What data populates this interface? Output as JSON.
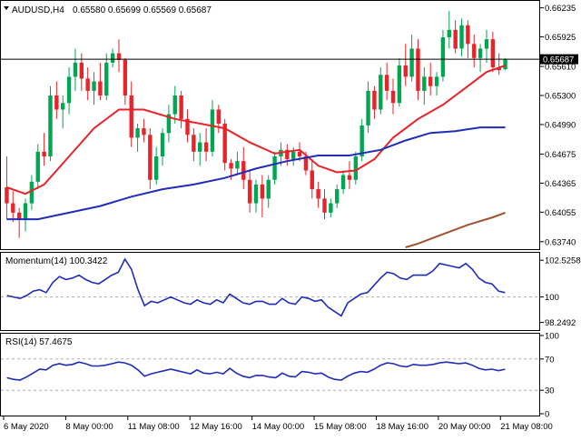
{
  "header": {
    "symbol_tf": "AUDUSD,H4",
    "ohlc": "0.65580 0.65699 0.65569 0.65687",
    "menu_icon": "triangle-down-icon"
  },
  "price_label": "0.65687",
  "panes": {
    "momentum_title": "Momentum(14) 100.3422",
    "rsi_title": "RSI(14) 57.4675"
  },
  "colors": {
    "bull": "#00a651",
    "bear": "#e8232a",
    "ema_fast": "#e8232a",
    "sma_mid": "#1f2db8",
    "sma_slow": "#a0522d",
    "osc": "#1f2db8"
  },
  "chart_data": [
    {
      "type": "candlestick",
      "name": "AUDUSD,H4",
      "y_ticks": [
        "0.66235",
        "0.65925",
        "0.65610",
        "0.65300",
        "0.64990",
        "0.64675",
        "0.64365",
        "0.64055",
        "0.63740"
      ],
      "ylim": [
        0.6368,
        0.6628
      ],
      "current_price": 0.65687,
      "x_labels": [
        "6 May 2020",
        "8 May 00:00",
        "11 May 08:00",
        "12 May 16:00",
        "14 May 00:00",
        "15 May 08:00",
        "18 May 16:00",
        "20 May 00:00",
        "21 May 08:00"
      ],
      "candles": [
        {
          "o": 0.6432,
          "h": 0.6465,
          "l": 0.6398,
          "c": 0.6415
        },
        {
          "o": 0.6415,
          "h": 0.6428,
          "l": 0.6395,
          "c": 0.6405
        },
        {
          "o": 0.6405,
          "h": 0.641,
          "l": 0.6378,
          "c": 0.6398
        },
        {
          "o": 0.6398,
          "h": 0.642,
          "l": 0.6385,
          "c": 0.6415
        },
        {
          "o": 0.6415,
          "h": 0.6445,
          "l": 0.6408,
          "c": 0.6438
        },
        {
          "o": 0.6438,
          "h": 0.6478,
          "l": 0.643,
          "c": 0.647
        },
        {
          "o": 0.647,
          "h": 0.649,
          "l": 0.6455,
          "c": 0.6465
        },
        {
          "o": 0.6465,
          "h": 0.654,
          "l": 0.646,
          "c": 0.653
        },
        {
          "o": 0.653,
          "h": 0.6545,
          "l": 0.6505,
          "c": 0.6515
        },
        {
          "o": 0.6515,
          "h": 0.653,
          "l": 0.6495,
          "c": 0.6522
        },
        {
          "o": 0.6522,
          "h": 0.656,
          "l": 0.651,
          "c": 0.655
        },
        {
          "o": 0.655,
          "h": 0.658,
          "l": 0.6535,
          "c": 0.6565
        },
        {
          "o": 0.6565,
          "h": 0.6575,
          "l": 0.6535,
          "c": 0.6548
        },
        {
          "o": 0.6548,
          "h": 0.656,
          "l": 0.6525,
          "c": 0.6535
        },
        {
          "o": 0.6535,
          "h": 0.6555,
          "l": 0.652,
          "c": 0.6545
        },
        {
          "o": 0.6545,
          "h": 0.6565,
          "l": 0.6525,
          "c": 0.653
        },
        {
          "o": 0.653,
          "h": 0.6575,
          "l": 0.6525,
          "c": 0.6565
        },
        {
          "o": 0.6565,
          "h": 0.658,
          "l": 0.656,
          "c": 0.6575
        },
        {
          "o": 0.6575,
          "h": 0.659,
          "l": 0.6555,
          "c": 0.6568
        },
        {
          "o": 0.6568,
          "h": 0.657,
          "l": 0.652,
          "c": 0.653
        },
        {
          "o": 0.653,
          "h": 0.6545,
          "l": 0.6475,
          "c": 0.6485
        },
        {
          "o": 0.6485,
          "h": 0.65,
          "l": 0.647,
          "c": 0.6495
        },
        {
          "o": 0.6495,
          "h": 0.6505,
          "l": 0.648,
          "c": 0.6488
        },
        {
          "o": 0.6488,
          "h": 0.6495,
          "l": 0.643,
          "c": 0.644
        },
        {
          "o": 0.644,
          "h": 0.6475,
          "l": 0.6435,
          "c": 0.6465
        },
        {
          "o": 0.6465,
          "h": 0.6495,
          "l": 0.6455,
          "c": 0.649
        },
        {
          "o": 0.649,
          "h": 0.652,
          "l": 0.648,
          "c": 0.651
        },
        {
          "o": 0.651,
          "h": 0.654,
          "l": 0.65,
          "c": 0.653
        },
        {
          "o": 0.653,
          "h": 0.6535,
          "l": 0.6495,
          "c": 0.6505
        },
        {
          "o": 0.6505,
          "h": 0.6515,
          "l": 0.648,
          "c": 0.6488
        },
        {
          "o": 0.6488,
          "h": 0.6495,
          "l": 0.646,
          "c": 0.647
        },
        {
          "o": 0.647,
          "h": 0.649,
          "l": 0.6455,
          "c": 0.648
        },
        {
          "o": 0.648,
          "h": 0.6495,
          "l": 0.646,
          "c": 0.647
        },
        {
          "o": 0.647,
          "h": 0.6525,
          "l": 0.6465,
          "c": 0.6515
        },
        {
          "o": 0.6515,
          "h": 0.652,
          "l": 0.649,
          "c": 0.65
        },
        {
          "o": 0.65,
          "h": 0.6505,
          "l": 0.645,
          "c": 0.6458
        },
        {
          "o": 0.6458,
          "h": 0.6462,
          "l": 0.644,
          "c": 0.6452
        },
        {
          "o": 0.6452,
          "h": 0.647,
          "l": 0.6445,
          "c": 0.646
        },
        {
          "o": 0.646,
          "h": 0.6475,
          "l": 0.643,
          "c": 0.644
        },
        {
          "o": 0.644,
          "h": 0.645,
          "l": 0.6405,
          "c": 0.6415
        },
        {
          "o": 0.6415,
          "h": 0.644,
          "l": 0.6405,
          "c": 0.6435
        },
        {
          "o": 0.6435,
          "h": 0.6445,
          "l": 0.64,
          "c": 0.642
        },
        {
          "o": 0.642,
          "h": 0.6445,
          "l": 0.641,
          "c": 0.644
        },
        {
          "o": 0.644,
          "h": 0.647,
          "l": 0.6435,
          "c": 0.6465
        },
        {
          "o": 0.6465,
          "h": 0.648,
          "l": 0.6455,
          "c": 0.6472
        },
        {
          "o": 0.6472,
          "h": 0.6478,
          "l": 0.6455,
          "c": 0.6462
        },
        {
          "o": 0.6462,
          "h": 0.6475,
          "l": 0.6455,
          "c": 0.647
        },
        {
          "o": 0.647,
          "h": 0.648,
          "l": 0.646,
          "c": 0.6465
        },
        {
          "o": 0.6465,
          "h": 0.647,
          "l": 0.6445,
          "c": 0.645
        },
        {
          "o": 0.645,
          "h": 0.6462,
          "l": 0.642,
          "c": 0.643
        },
        {
          "o": 0.643,
          "h": 0.6438,
          "l": 0.641,
          "c": 0.642
        },
        {
          "o": 0.642,
          "h": 0.643,
          "l": 0.6398,
          "c": 0.6405
        },
        {
          "o": 0.6405,
          "h": 0.642,
          "l": 0.64,
          "c": 0.6415
        },
        {
          "o": 0.6415,
          "h": 0.6435,
          "l": 0.641,
          "c": 0.643
        },
        {
          "o": 0.643,
          "h": 0.645,
          "l": 0.6425,
          "c": 0.6445
        },
        {
          "o": 0.6445,
          "h": 0.646,
          "l": 0.643,
          "c": 0.644
        },
        {
          "o": 0.644,
          "h": 0.647,
          "l": 0.6435,
          "c": 0.6465
        },
        {
          "o": 0.6465,
          "h": 0.6505,
          "l": 0.646,
          "c": 0.6498
        },
        {
          "o": 0.6498,
          "h": 0.6545,
          "l": 0.649,
          "c": 0.6535
        },
        {
          "o": 0.6535,
          "h": 0.654,
          "l": 0.6505,
          "c": 0.6515
        },
        {
          "o": 0.6515,
          "h": 0.656,
          "l": 0.651,
          "c": 0.6552
        },
        {
          "o": 0.6552,
          "h": 0.6565,
          "l": 0.6525,
          "c": 0.6535
        },
        {
          "o": 0.6535,
          "h": 0.6548,
          "l": 0.651,
          "c": 0.6522
        },
        {
          "o": 0.6522,
          "h": 0.657,
          "l": 0.6518,
          "c": 0.6562
        },
        {
          "o": 0.6562,
          "h": 0.6585,
          "l": 0.654,
          "c": 0.655
        },
        {
          "o": 0.655,
          "h": 0.6595,
          "l": 0.6545,
          "c": 0.658
        },
        {
          "o": 0.658,
          "h": 0.659,
          "l": 0.6525,
          "c": 0.6535
        },
        {
          "o": 0.6535,
          "h": 0.656,
          "l": 0.652,
          "c": 0.655
        },
        {
          "o": 0.655,
          "h": 0.6565,
          "l": 0.653,
          "c": 0.654
        },
        {
          "o": 0.654,
          "h": 0.6555,
          "l": 0.653,
          "c": 0.655
        },
        {
          "o": 0.655,
          "h": 0.66,
          "l": 0.6545,
          "c": 0.6592
        },
        {
          "o": 0.6592,
          "h": 0.662,
          "l": 0.658,
          "c": 0.66
        },
        {
          "o": 0.66,
          "h": 0.661,
          "l": 0.6575,
          "c": 0.658
        },
        {
          "o": 0.658,
          "h": 0.6612,
          "l": 0.6572,
          "c": 0.6605
        },
        {
          "o": 0.6605,
          "h": 0.661,
          "l": 0.657,
          "c": 0.6585
        },
        {
          "o": 0.6585,
          "h": 0.6595,
          "l": 0.656,
          "c": 0.657
        },
        {
          "o": 0.657,
          "h": 0.6585,
          "l": 0.6555,
          "c": 0.658
        },
        {
          "o": 0.658,
          "h": 0.66,
          "l": 0.6565,
          "c": 0.659
        },
        {
          "o": 0.659,
          "h": 0.6598,
          "l": 0.6555,
          "c": 0.656
        },
        {
          "o": 0.656,
          "h": 0.6575,
          "l": 0.6552,
          "c": 0.6557
        },
        {
          "o": 0.6558,
          "h": 0.657,
          "l": 0.6557,
          "c": 0.65687
        }
      ],
      "indicators": [
        {
          "kind": "ema_fast",
          "points": [
            [
              0,
              0.6432
            ],
            [
              3,
              0.6425
            ],
            [
              6,
              0.6435
            ],
            [
              10,
              0.6465
            ],
            [
              14,
              0.6495
            ],
            [
              18,
              0.6515
            ],
            [
              22,
              0.6515
            ],
            [
              27,
              0.6505
            ],
            [
              31,
              0.65
            ],
            [
              35,
              0.6495
            ],
            [
              39,
              0.648
            ],
            [
              43,
              0.6468
            ],
            [
              47,
              0.6472
            ],
            [
              50,
              0.6455
            ],
            [
              53,
              0.6448
            ],
            [
              56,
              0.645
            ],
            [
              59,
              0.6462
            ],
            [
              62,
              0.6485
            ],
            [
              66,
              0.6505
            ],
            [
              70,
              0.652
            ],
            [
              74,
              0.654
            ],
            [
              77,
              0.6555
            ],
            [
              80,
              0.6562
            ]
          ]
        },
        {
          "kind": "sma_mid",
          "points": [
            [
              0,
              0.6398
            ],
            [
              5,
              0.6398
            ],
            [
              10,
              0.6405
            ],
            [
              15,
              0.6412
            ],
            [
              20,
              0.6422
            ],
            [
              25,
              0.643
            ],
            [
              30,
              0.6435
            ],
            [
              35,
              0.6442
            ],
            [
              40,
              0.6452
            ],
            [
              45,
              0.646
            ],
            [
              50,
              0.6466
            ],
            [
              55,
              0.6466
            ],
            [
              60,
              0.6472
            ],
            [
              64,
              0.6482
            ],
            [
              68,
              0.649
            ],
            [
              72,
              0.6492
            ],
            [
              76,
              0.6496
            ],
            [
              80,
              0.6496
            ]
          ]
        },
        {
          "kind": "sma_slow",
          "points": [
            [
              64,
              0.6368
            ],
            [
              66,
              0.6372
            ],
            [
              70,
              0.6382
            ],
            [
              74,
              0.6392
            ],
            [
              78,
              0.64
            ],
            [
              80,
              0.6405
            ]
          ]
        }
      ]
    },
    {
      "type": "line",
      "name": "Momentum(14)",
      "y_ticks": [
        "102.5258",
        "100",
        "98.2492"
      ],
      "ylim": [
        97.85,
        102.85
      ],
      "reference_line": 100,
      "values": [
        100.1,
        100.0,
        99.9,
        100.1,
        100.4,
        100.5,
        100.3,
        101.0,
        101.4,
        101.2,
        101.3,
        101.5,
        101.2,
        101.0,
        100.9,
        101.2,
        101.5,
        101.7,
        102.6,
        101.9,
        100.5,
        99.4,
        99.7,
        99.6,
        99.8,
        100.0,
        99.8,
        99.6,
        99.5,
        99.8,
        99.6,
        99.5,
        99.8,
        99.6,
        100.2,
        99.9,
        99.6,
        99.5,
        99.7,
        99.7,
        99.5,
        99.5,
        99.9,
        99.6,
        99.5,
        100.0,
        99.9,
        99.7,
        99.8,
        99.3,
        99.0,
        98.7,
        99.6,
        99.9,
        100.2,
        100.3,
        100.8,
        101.3,
        101.7,
        101.6,
        101.3,
        101.2,
        101.5,
        101.5,
        101.5,
        101.8,
        102.3,
        102.2,
        102.1,
        102.0,
        102.3,
        101.9,
        101.3,
        101.0,
        100.9,
        100.4,
        100.3
      ]
    },
    {
      "type": "line",
      "name": "RSI(14)",
      "y_ticks": [
        "100",
        "70",
        "30",
        "0"
      ],
      "ylim": [
        0,
        100
      ],
      "reference_lines": [
        70,
        30
      ],
      "values": [
        46,
        44,
        43,
        47,
        52,
        57,
        56,
        62,
        64,
        62,
        63,
        66,
        64,
        61,
        61,
        62,
        64,
        66,
        65,
        62,
        56,
        48,
        51,
        53,
        55,
        57,
        55,
        53,
        51,
        56,
        52,
        51,
        53,
        51,
        58,
        52,
        48,
        46,
        49,
        49,
        47,
        46,
        52,
        48,
        47,
        54,
        53,
        51,
        52,
        47,
        44,
        43,
        48,
        52,
        54,
        53,
        57,
        62,
        65,
        64,
        61,
        60,
        63,
        62,
        62,
        63,
        65,
        66,
        65,
        64,
        65,
        62,
        58,
        56,
        57,
        55,
        57
      ]
    }
  ]
}
